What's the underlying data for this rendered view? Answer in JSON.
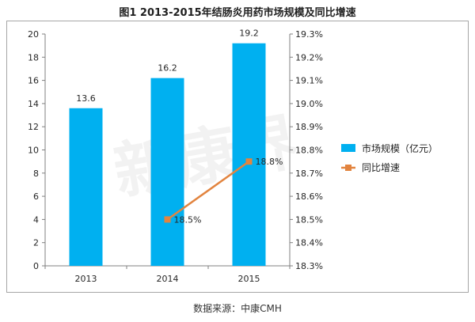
{
  "title": "图1 2013-2015年结肠炎用药市场规模及同比增速",
  "source": "数据来源：中康CMH",
  "watermark": "新康界",
  "colors": {
    "bar": "#00b0f0",
    "line": "#e2843f",
    "axis": "#808080",
    "grid": "#d9d9d9"
  },
  "chart_data": {
    "type": "bar",
    "categories": [
      "2013",
      "2014",
      "2015"
    ],
    "series": [
      {
        "name": "市场规模（亿元）",
        "type": "bar",
        "axis": "left",
        "values": [
          13.6,
          16.2,
          19.2
        ],
        "labels": [
          "13.6",
          "16.2",
          "19.2"
        ]
      },
      {
        "name": "同比增速",
        "type": "line",
        "axis": "right",
        "values": [
          null,
          18.5,
          18.75
        ],
        "labels": [
          "",
          "18.5%",
          "18.8%"
        ]
      }
    ],
    "y_left": {
      "min": 0,
      "max": 20,
      "step": 2,
      "ticks": [
        "0",
        "2",
        "4",
        "6",
        "8",
        "10",
        "12",
        "14",
        "16",
        "18",
        "20"
      ]
    },
    "y_right": {
      "min": 18.3,
      "max": 19.3,
      "step": 0.1,
      "ticks": [
        "18.3%",
        "18.4%",
        "18.5%",
        "18.6%",
        "18.7%",
        "18.8%",
        "18.9%",
        "19.0%",
        "19.1%",
        "19.2%",
        "19.3%"
      ]
    },
    "grid": false,
    "legend_position": "right"
  }
}
